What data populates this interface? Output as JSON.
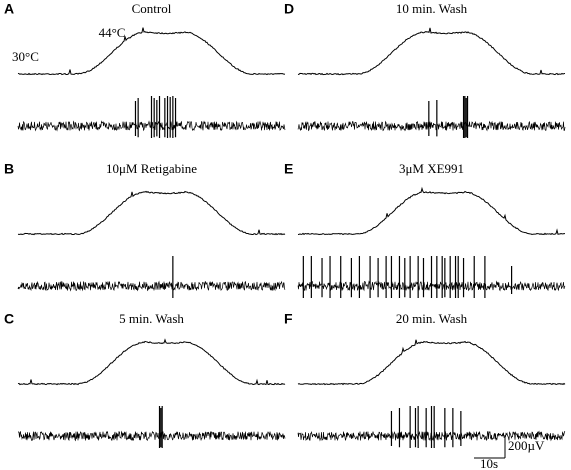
{
  "panels": [
    {
      "letter": "A",
      "title": "Control"
    },
    {
      "letter": "B",
      "title": "10μM Retigabine"
    },
    {
      "letter": "C",
      "title": "5 min. Wash"
    },
    {
      "letter": "D",
      "title": "10 min. Wash"
    },
    {
      "letter": "E",
      "title": "3μM XE991"
    },
    {
      "letter": "F",
      "title": "20 min. Wash"
    }
  ],
  "labels": {
    "peak_temp": "44°C",
    "base_temp": "30°C"
  },
  "scale_bar": {
    "voltage": "200µV",
    "time": "10s"
  }
}
